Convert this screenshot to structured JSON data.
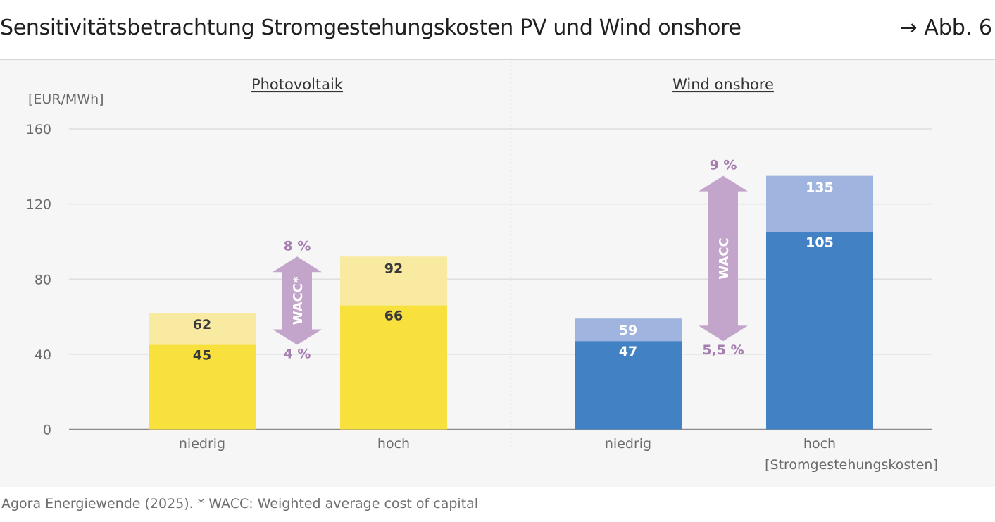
{
  "header": {
    "title": "Sensitivitätsbetrachtung Stromgestehungskosten PV und Wind onshore",
    "figure_ref": "→ Abb. 6"
  },
  "footer": {
    "source": "Agora Energiewende (2025). * WACC: Weighted average cost of capital"
  },
  "colors": {
    "pv_base": "#f9e13d",
    "pv_top": "#f8eaa0",
    "wind_base": "#4281c3",
    "wind_top": "#9fb4de",
    "arrow": "#c3a5cb",
    "arrow_label": "#a67db1",
    "grid": "#dedede",
    "axis": "#8a8a8a"
  },
  "chart_data": {
    "type": "bar",
    "stacked": true,
    "ylabel": "[EUR/MWh]",
    "ylim": [
      0,
      160
    ],
    "yticks": [
      "0",
      "40",
      "80",
      "120",
      "160"
    ],
    "xlabel": "[Stromgestehungskosten]",
    "categories": [
      "niedrig",
      "hoch"
    ],
    "grid": true,
    "panels": [
      {
        "title": "Photovoltaik",
        "base_values": [
          45,
          66
        ],
        "total_values": [
          62,
          92
        ],
        "base_labels": [
          "45",
          "66"
        ],
        "total_labels": [
          "62",
          "92"
        ],
        "arrow": {
          "label": "WACC*",
          "from_label": "4 %",
          "to_label": "8 %",
          "from": 45,
          "to": 92
        }
      },
      {
        "title": "Wind onshore",
        "base_values": [
          47,
          105
        ],
        "total_values": [
          59,
          135
        ],
        "base_labels": [
          "47",
          "105"
        ],
        "total_labels": [
          "59",
          "135"
        ],
        "arrow": {
          "label": "WACC",
          "from_label": "5,5 %",
          "to_label": "9 %",
          "from": 47,
          "to": 135
        }
      }
    ]
  }
}
